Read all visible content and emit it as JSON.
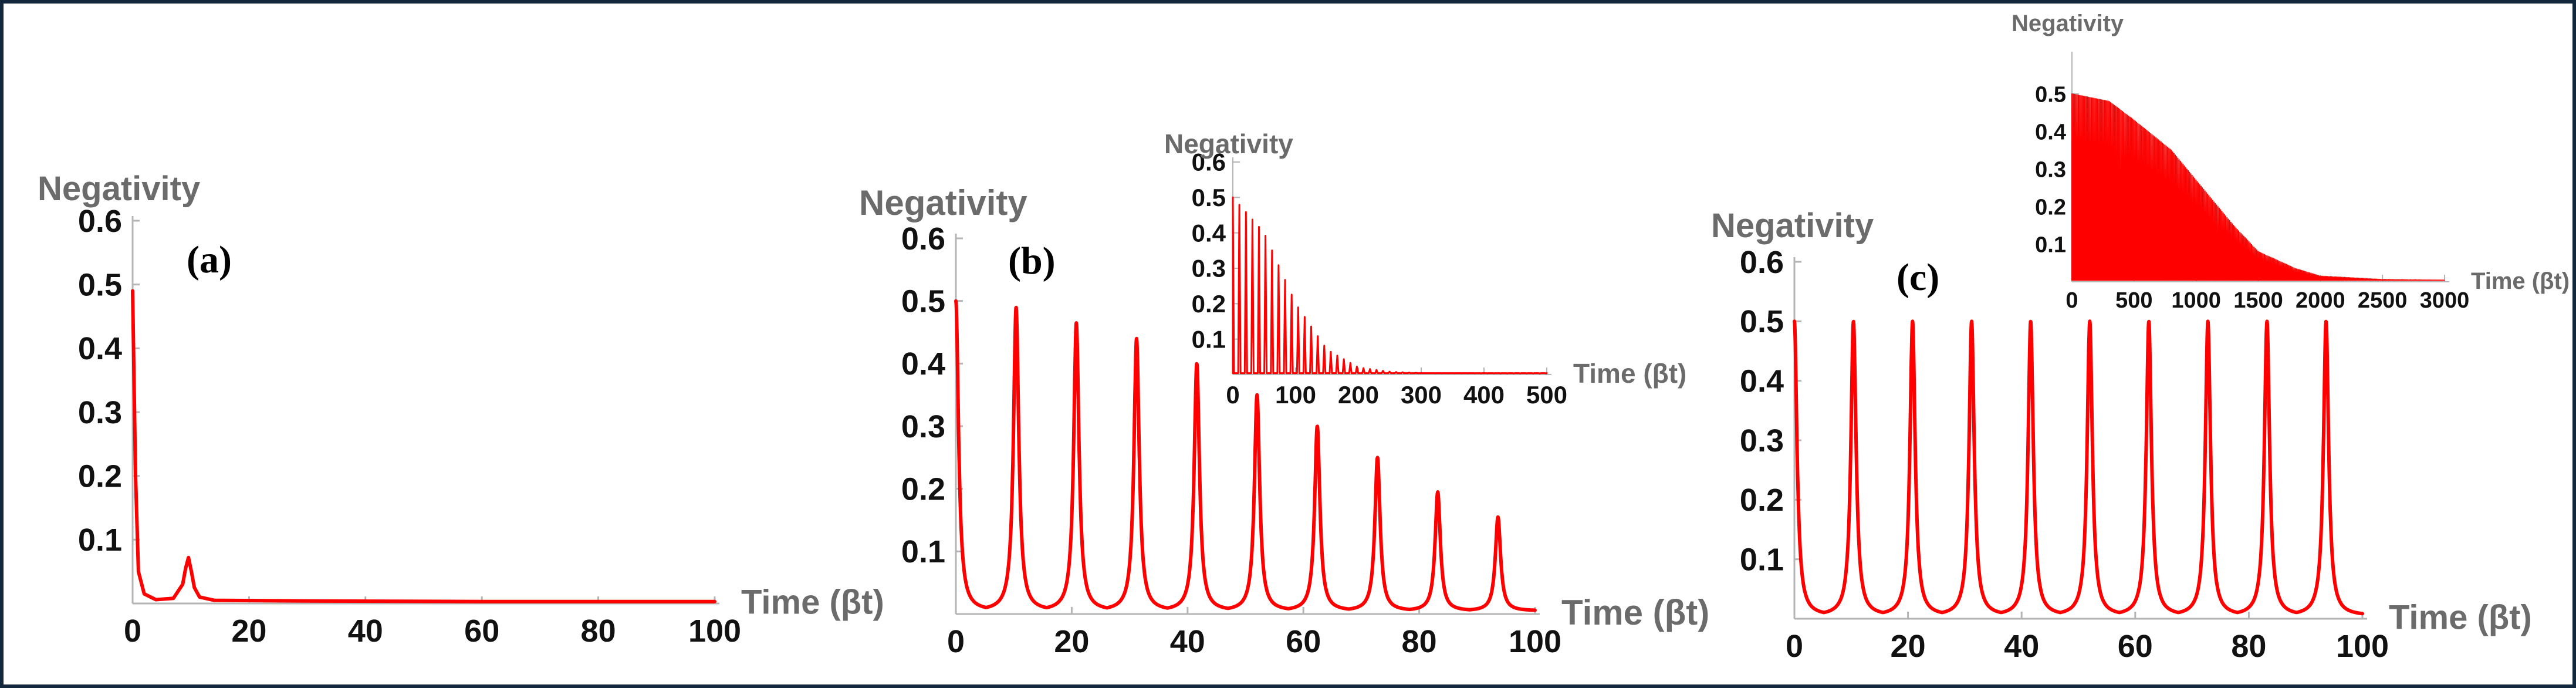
{
  "colors": {
    "curve": "#ff0000",
    "axis": "#b5b5b5",
    "label": "#6b6b6b",
    "tick": "#111111"
  },
  "chart_data": [
    {
      "id": "a",
      "type": "line",
      "panel_label": "(a)",
      "ylabel": "Negativity",
      "xlabel": "Time (βt)",
      "xlim": [
        0,
        100
      ],
      "ylim": [
        0,
        0.6
      ],
      "xticks": [
        0,
        20,
        40,
        60,
        80,
        100
      ],
      "yticks": [
        0.1,
        0.2,
        0.3,
        0.4,
        0.5,
        0.6
      ],
      "series": [
        {
          "points": [
            [
              0,
              0.49
            ],
            [
              0.5,
              0.2
            ],
            [
              1,
              0.05
            ],
            [
              2,
              0.015
            ],
            [
              4,
              0.006
            ],
            [
              7,
              0.008
            ],
            [
              8.6,
              0.03
            ],
            [
              9.1,
              0.055
            ],
            [
              9.6,
              0.072
            ],
            [
              10.1,
              0.05
            ],
            [
              10.6,
              0.025
            ],
            [
              11.5,
              0.01
            ],
            [
              14,
              0.005
            ],
            [
              30,
              0.004
            ],
            [
              60,
              0.003
            ],
            [
              100,
              0.003
            ]
          ]
        }
      ]
    },
    {
      "id": "b",
      "type": "line",
      "panel_label": "(b)",
      "ylabel": "Negativity",
      "xlabel": "Time (βt)",
      "xlim": [
        0,
        100
      ],
      "ylim": [
        0,
        0.6
      ],
      "xticks": [
        0,
        20,
        40,
        60,
        80,
        100
      ],
      "yticks": [
        0.1,
        0.2,
        0.3,
        0.4,
        0.5,
        0.6
      ],
      "series": [
        {
          "peak_times": [
            0,
            10.4,
            20.8,
            31.2,
            41.6,
            52,
            62.4,
            72.8,
            83.2,
            93.6
          ],
          "peak_values": [
            0.5,
            0.49,
            0.465,
            0.44,
            0.4,
            0.35,
            0.3,
            0.25,
            0.195,
            0.155
          ],
          "baseline": 0.005
        }
      ],
      "inset": {
        "type": "line",
        "ylabel": "Negativity",
        "xlabel": "Time (βt)",
        "xlim": [
          0,
          500
        ],
        "ylim": [
          0,
          0.6
        ],
        "xticks": [
          0,
          100,
          200,
          300,
          400,
          500
        ],
        "yticks": [
          0.1,
          0.2,
          0.3,
          0.4,
          0.5,
          0.6
        ],
        "series": [
          {
            "peak_spacing": 10.4,
            "envelope": [
              [
                0,
                0.5
              ],
              [
                50,
                0.4
              ],
              [
                100,
                0.2
              ],
              [
                150,
                0.07
              ],
              [
                200,
                0.02
              ],
              [
                250,
                0.008
              ],
              [
                300,
                0.004
              ],
              [
                500,
                0.003
              ]
            ]
          }
        ]
      }
    },
    {
      "id": "c",
      "type": "line",
      "panel_label": "(c)",
      "ylabel": "Negativity",
      "xlabel": "Time (βt)",
      "xlim": [
        0,
        100
      ],
      "ylim": [
        0,
        0.6
      ],
      "xticks": [
        0,
        20,
        40,
        60,
        80,
        100
      ],
      "yticks": [
        0.1,
        0.2,
        0.3,
        0.4,
        0.5,
        0.6
      ],
      "series": [
        {
          "peak_times": [
            0,
            10.4,
            20.8,
            31.2,
            41.6,
            52,
            62.4,
            72.8,
            83.2,
            93.6
          ],
          "peak_values": [
            0.5,
            0.5,
            0.5,
            0.5,
            0.5,
            0.5,
            0.5,
            0.5,
            0.5,
            0.5
          ],
          "baseline": 0.005
        }
      ],
      "inset": {
        "type": "line",
        "ylabel": "Negativity",
        "xlabel": "Time (βt)",
        "xlim": [
          0,
          3000
        ],
        "ylim": [
          0,
          0.6
        ],
        "xticks": [
          0,
          500,
          1000,
          1500,
          2000,
          2500,
          3000
        ],
        "yticks": [
          0.1,
          0.2,
          0.3,
          0.4,
          0.5
        ],
        "series": [
          {
            "peak_spacing": 10.4,
            "envelope": [
              [
                0,
                0.5
              ],
              [
                300,
                0.48
              ],
              [
                500,
                0.43
              ],
              [
                800,
                0.35
              ],
              [
                1000,
                0.27
              ],
              [
                1300,
                0.15
              ],
              [
                1500,
                0.08
              ],
              [
                1800,
                0.035
              ],
              [
                2000,
                0.015
              ],
              [
                2500,
                0.006
              ],
              [
                3000,
                0.004
              ]
            ]
          }
        ]
      }
    }
  ]
}
